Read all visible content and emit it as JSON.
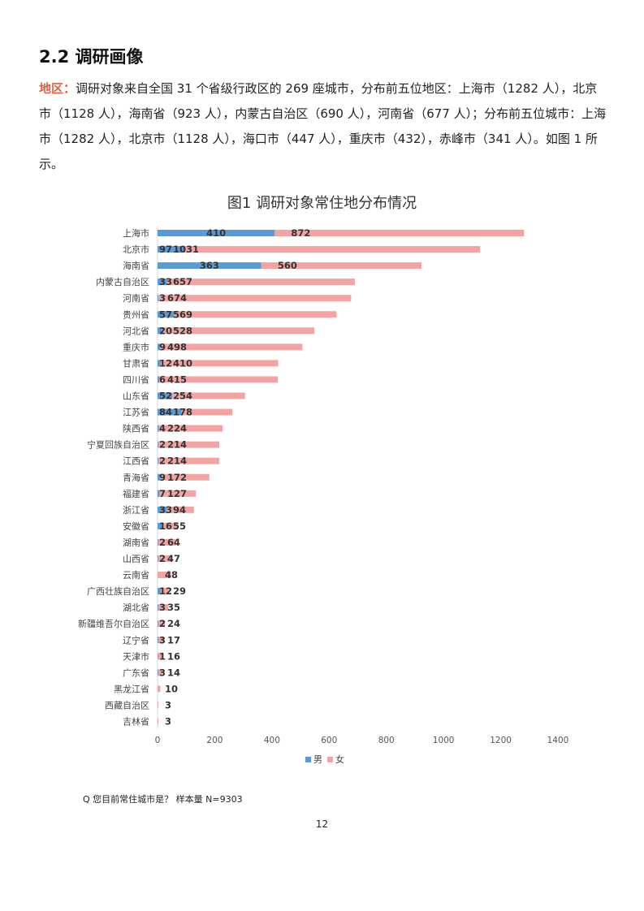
{
  "heading": "2.2 调研画像",
  "paragraph": {
    "lead": "地区：",
    "text": "调研对象来自全国 31 个省级行政区的 269 座城市，分布前五位地区：上海市（1282 人），北京市（1128 人），海南省（923 人），内蒙古自治区（690 人），河南省（677 人）；分布前五位城市：上海市（1282 人），北京市（1128 人），海口市（447 人），重庆市（432），赤峰市（341 人）。如图 1 所示。"
  },
  "colors": {
    "male": "#5b9bd5",
    "female": "#f4a3a3",
    "lead": "#e06040"
  },
  "chart_data": {
    "type": "bar",
    "orientation": "horizontal",
    "stacked": true,
    "title": "图1 调研对象常住地分布情况",
    "categories": [
      "上海市",
      "北京市",
      "海南省",
      "内蒙古自治区",
      "河南省",
      "贵州省",
      "河北省",
      "重庆市",
      "甘肃省",
      "四川省",
      "山东省",
      "江苏省",
      "陕西省",
      "宁夏回族自治区",
      "江西省",
      "青海省",
      "福建省",
      "浙江省",
      "安徽省",
      "湖南省",
      "山西省",
      "云南省",
      "广西壮族自治区",
      "湖北省",
      "新疆维吾尔自治区",
      "辽宁省",
      "天津市",
      "广东省",
      "黑龙江省",
      "西藏自治区",
      "吉林省"
    ],
    "series": [
      {
        "name": "男",
        "values": [
          410,
          97,
          363,
          33,
          3,
          57,
          20,
          9,
          12,
          6,
          52,
          84,
          4,
          2,
          2,
          9,
          7,
          33,
          16,
          2,
          2,
          0,
          12,
          3,
          2,
          3,
          1,
          3,
          0,
          0,
          0
        ]
      },
      {
        "name": "女",
        "values": [
          872,
          1031,
          560,
          657,
          674,
          569,
          528,
          498,
          410,
          415,
          254,
          178,
          224,
          214,
          214,
          172,
          127,
          94,
          55,
          64,
          47,
          48,
          29,
          35,
          24,
          17,
          16,
          14,
          10,
          3,
          3
        ]
      }
    ],
    "male_labels": [
      "410",
      "97",
      "363",
      "33",
      "3",
      "57",
      "20",
      "9",
      "12",
      "6",
      "52",
      "84",
      "4",
      "2",
      "2",
      "9",
      "7",
      "33",
      "16",
      "2",
      "2",
      "",
      "12",
      "3",
      "2",
      "3",
      "1",
      "3",
      "",
      "",
      ""
    ],
    "female_labels": [
      "872",
      "1031",
      "560",
      "657",
      "674",
      "569",
      "528",
      "498",
      "410",
      "415",
      "254",
      "178",
      "224",
      "214",
      "214",
      "172",
      "127",
      "94",
      "55",
      "64",
      "47",
      "48",
      "29",
      "35",
      "24",
      "17",
      "16",
      "14",
      "10",
      "3",
      "3"
    ],
    "xlim": [
      0,
      1400
    ],
    "xticks": [
      "0",
      "200",
      "400",
      "600",
      "800",
      "1000",
      "1200",
      "1400"
    ],
    "legend": [
      "男",
      "女"
    ],
    "legend_position": "bottom",
    "grid": false
  },
  "footnote": "Q 您目前常住城市是？ 样本量 N=9303",
  "page_number": "12"
}
